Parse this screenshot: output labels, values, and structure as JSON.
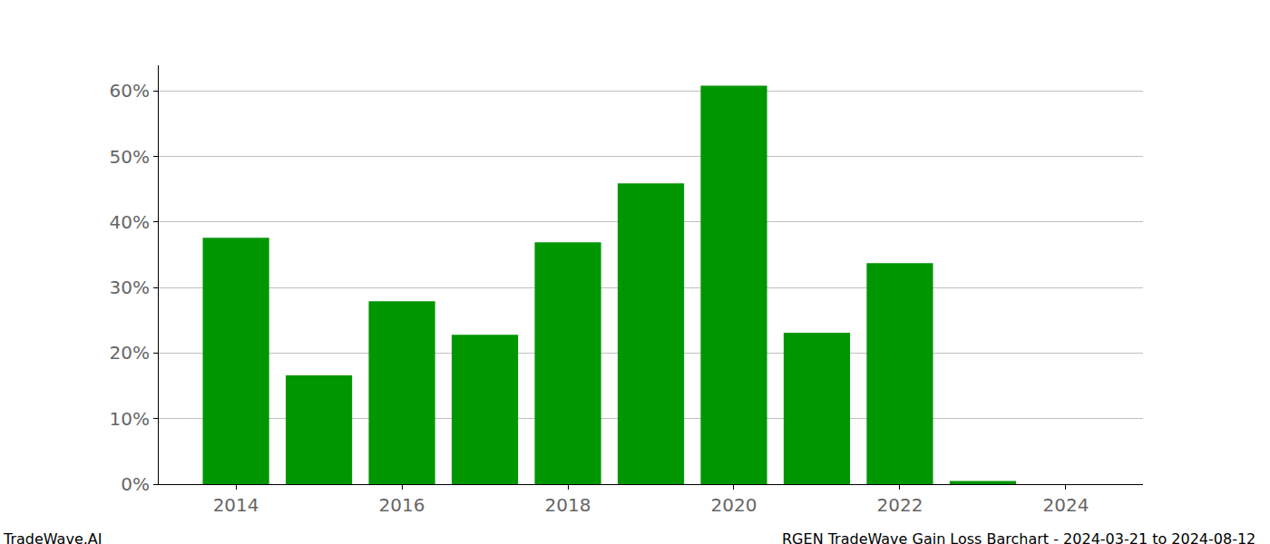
{
  "chart_data": {
    "type": "bar",
    "title": "RGEN TradeWave Gain Loss Barchart - 2024-03-21 to 2024-08-12",
    "annotations": [
      "TradeWave.AI"
    ],
    "x": [
      2014,
      2015,
      2016,
      2017,
      2018,
      2019,
      2020,
      2021,
      2022,
      2023
    ],
    "values": [
      37.6,
      16.6,
      27.9,
      22.8,
      36.9,
      45.9,
      60.8,
      23.1,
      33.7,
      0.5
    ],
    "color": "#009600",
    "xlim": [
      2013.07,
      2024.93
    ],
    "xticks": [
      2014,
      2016,
      2018,
      2020,
      2022,
      2024
    ],
    "ylim": [
      0,
      63.9
    ],
    "yticks": [
      {
        "value": 0,
        "label": "0%"
      },
      {
        "value": 10,
        "label": "10%"
      },
      {
        "value": 20,
        "label": "20%"
      },
      {
        "value": 30,
        "label": "30%"
      },
      {
        "value": 40,
        "label": "40%"
      },
      {
        "value": 50,
        "label": "50%"
      },
      {
        "value": 60,
        "label": "60%"
      }
    ],
    "grid": true
  }
}
